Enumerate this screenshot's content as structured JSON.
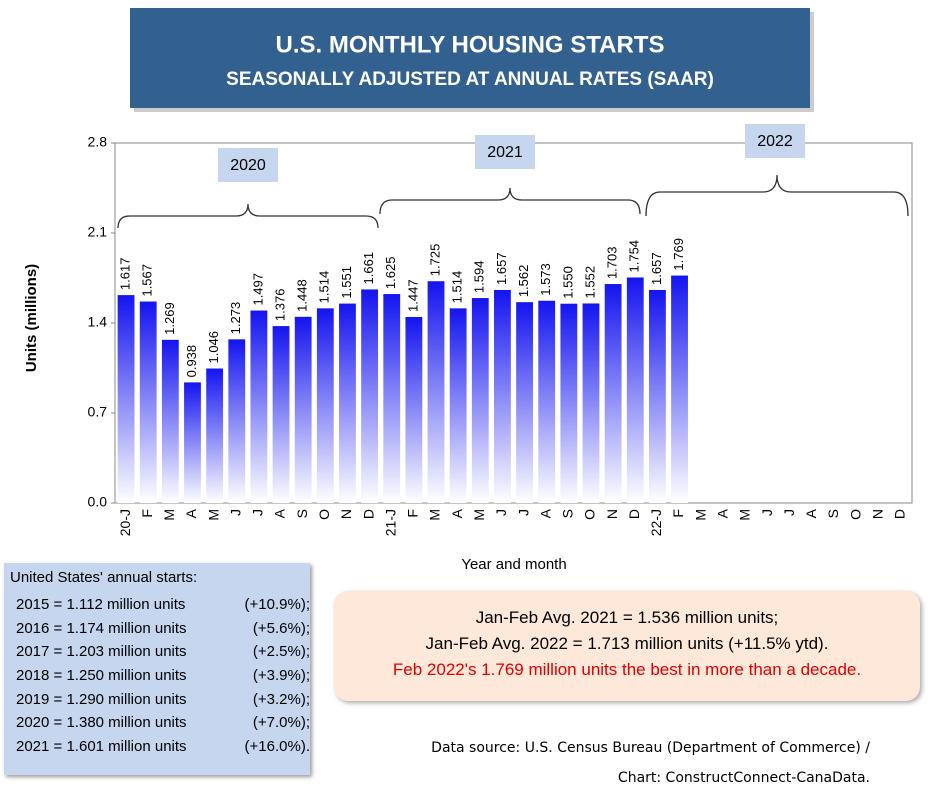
{
  "chart_data": {
    "type": "bar",
    "title": "U.S. MONTHLY HOUSING STARTS",
    "subtitle": "SEASONALLY ADJUSTED AT ANNUAL RATES (SAAR)",
    "y_label": "Units (millions)",
    "x_label": "Year and month",
    "categories": [
      "20-J",
      "F",
      "M",
      "A",
      "M",
      "J",
      "J",
      "A",
      "S",
      "O",
      "N",
      "D",
      "21-J",
      "F",
      "M",
      "A",
      "M",
      "J",
      "J",
      "A",
      "S",
      "O",
      "N",
      "D",
      "22-J",
      "F",
      "M",
      "A",
      "M",
      "J",
      "J",
      "A",
      "S",
      "O",
      "N",
      "D"
    ],
    "values": [
      1.617,
      1.567,
      1.269,
      0.938,
      1.046,
      1.273,
      1.497,
      1.376,
      1.448,
      1.514,
      1.551,
      1.661,
      1.625,
      1.447,
      1.725,
      1.514,
      1.594,
      1.657,
      1.562,
      1.573,
      1.55,
      1.552,
      1.703,
      1.754,
      1.657,
      1.769,
      null,
      null,
      null,
      null,
      null,
      null,
      null,
      null,
      null,
      null
    ],
    "value_labels": [
      "1.617",
      "1.567",
      "1.269",
      "0.938",
      "1.046",
      "1.273",
      "1.497",
      "1.376",
      "1.448",
      "1.514",
      "1.551",
      "1.661",
      "1.625",
      "1.447",
      "1.725",
      "1.514",
      "1.594",
      "1.657",
      "1.562",
      "1.573",
      "1.550",
      "1.552",
      "1.703",
      "1.754",
      "1.657",
      "1.769",
      null,
      null,
      null,
      null,
      null,
      null,
      null,
      null,
      null,
      null
    ],
    "annotations": [
      "2020",
      "2021",
      "2022"
    ],
    "ylim": [
      0,
      2.8
    ],
    "yticks": [
      {
        "value": 0,
        "label": "0.0"
      },
      0.7,
      1.4,
      2.1,
      2.8
    ],
    "grid": false
  },
  "annual_starts": {
    "title": "United States' annual starts:",
    "rows": [
      [
        "2015 = 1.112 million units",
        "(+10.9%);"
      ],
      [
        "2016 = 1.174 million units",
        "(+5.6%);"
      ],
      [
        "2017 = 1.203 million units",
        "(+2.5%);"
      ],
      [
        "2018 = 1.250 million units",
        "(+3.9%);"
      ],
      [
        "2019 = 1.290 million units",
        "(+3.2%);"
      ],
      [
        "2020 = 1.380 million units",
        "(+7.0%);"
      ],
      [
        "2021 = 1.601 million units",
        "(+16.0%)."
      ]
    ]
  },
  "averages": [
    "Jan-Feb Avg. 2021 = 1.536 million units;",
    "Jan-Feb Avg. 2022 = 1.713 million units (+11.5% ytd).",
    "Feb 2022's 1.769 million units the best in more than a decade."
  ],
  "source": [
    "Data source: U.S. Census Bureau (Department of Commerce) /",
    "Chart: ConstructConnect-CanaData."
  ]
}
